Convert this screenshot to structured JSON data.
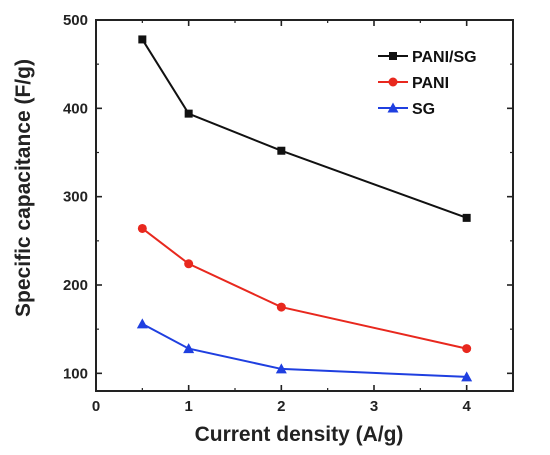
{
  "chart_data": {
    "type": "line",
    "xlabel": "Current density (A/g)",
    "ylabel": "Specific capacitance (F/g)",
    "xlim": [
      0,
      4.5
    ],
    "ylim": [
      80,
      500
    ],
    "x_ticks": [
      0,
      1,
      2,
      3,
      4
    ],
    "y_ticks": [
      100,
      200,
      300,
      400,
      500
    ],
    "grid": false,
    "legend_position": "top-right",
    "series": [
      {
        "name": "PANI/SG",
        "color": "#111111",
        "marker": "square",
        "x": [
          0.5,
          1,
          2,
          4
        ],
        "values": [
          478,
          394,
          352,
          276
        ]
      },
      {
        "name": "PANI",
        "color": "#e8281e",
        "marker": "circle",
        "x": [
          0.5,
          1,
          2,
          4
        ],
        "values": [
          264,
          224,
          175,
          128
        ]
      },
      {
        "name": "SG",
        "color": "#1f3fe0",
        "marker": "triangle",
        "x": [
          0.5,
          1,
          2,
          4
        ],
        "values": [
          156,
          128,
          105,
          96
        ]
      }
    ]
  }
}
